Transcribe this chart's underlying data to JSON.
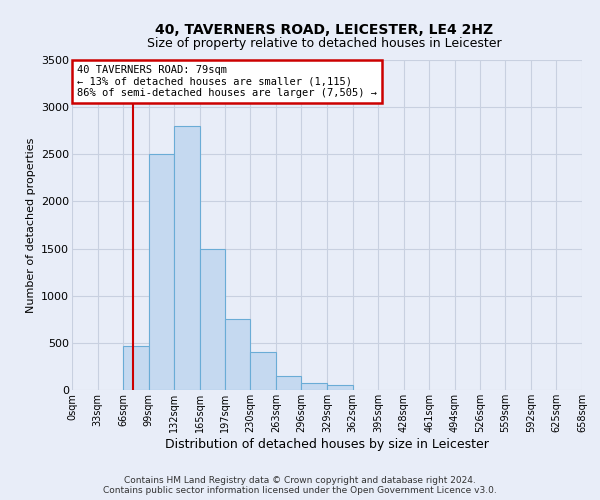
{
  "title": "40, TAVERNERS ROAD, LEICESTER, LE4 2HZ",
  "subtitle": "Size of property relative to detached houses in Leicester",
  "xlabel": "Distribution of detached houses by size in Leicester",
  "ylabel": "Number of detached properties",
  "bar_left_edges": [
    0,
    33,
    66,
    99,
    132,
    165,
    197,
    230,
    263,
    296,
    329,
    362,
    395,
    428,
    461,
    494,
    526,
    559,
    592,
    625
  ],
  "bar_heights": [
    0,
    0,
    470,
    2500,
    2800,
    1500,
    750,
    400,
    150,
    75,
    50,
    0,
    0,
    0,
    0,
    0,
    0,
    0,
    0,
    0
  ],
  "bin_width": 33,
  "bar_color": "#c5d9f0",
  "bar_edge_color": "#6aacd6",
  "property_line_x": 79,
  "property_line_color": "#cc0000",
  "ylim": [
    0,
    3500
  ],
  "xlim": [
    0,
    658
  ],
  "tick_labels": [
    "0sqm",
    "33sqm",
    "66sqm",
    "99sqm",
    "132sqm",
    "165sqm",
    "197sqm",
    "230sqm",
    "263sqm",
    "296sqm",
    "329sqm",
    "362sqm",
    "395sqm",
    "428sqm",
    "461sqm",
    "494sqm",
    "526sqm",
    "559sqm",
    "592sqm",
    "625sqm",
    "658sqm"
  ],
  "tick_positions": [
    0,
    33,
    66,
    99,
    132,
    165,
    197,
    230,
    263,
    296,
    329,
    362,
    395,
    428,
    461,
    494,
    526,
    559,
    592,
    625,
    658
  ],
  "annotation_text": "40 TAVERNERS ROAD: 79sqm\n← 13% of detached houses are smaller (1,115)\n86% of semi-detached houses are larger (7,505) →",
  "annotation_box_color": "#ffffff",
  "annotation_box_edge_color": "#cc0000",
  "footer_line1": "Contains HM Land Registry data © Crown copyright and database right 2024.",
  "footer_line2": "Contains public sector information licensed under the Open Government Licence v3.0.",
  "background_color": "#e8edf8",
  "plot_background_color": "#e8edf8",
  "grid_color": "#c8d0e0",
  "title_fontsize": 10,
  "subtitle_fontsize": 9,
  "ylabel_fontsize": 8,
  "xlabel_fontsize": 9,
  "tick_fontsize": 7,
  "footer_fontsize": 6.5,
  "ytick_values": [
    0,
    500,
    1000,
    1500,
    2000,
    2500,
    3000,
    3500
  ],
  "ytick_labels": [
    "0",
    "500",
    "1000",
    "1500",
    "2000",
    "2500",
    "3000",
    "3500"
  ]
}
